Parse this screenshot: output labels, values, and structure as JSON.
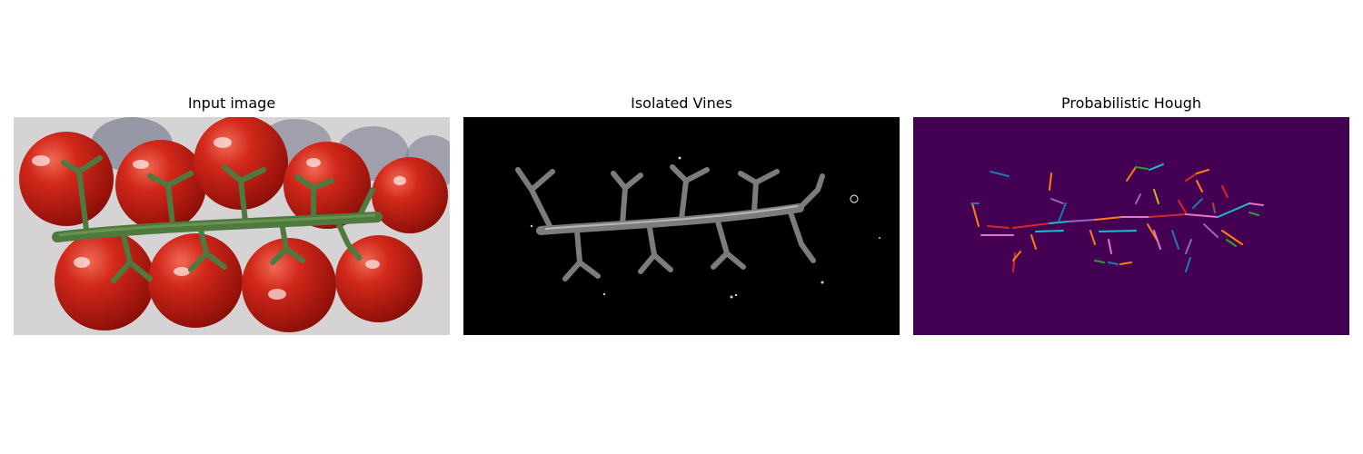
{
  "panels": [
    {
      "title": "Input image"
    },
    {
      "title": "Isolated Vines"
    },
    {
      "title": "Probabilistic Hough"
    }
  ],
  "colors": {
    "hough_background": "#440154",
    "vines_background": "#000000",
    "segment_palette": [
      "#1f77b4",
      "#ff7f0e",
      "#2ca02c",
      "#d62728",
      "#9467bd",
      "#8c564b",
      "#e377c2",
      "#7f7f7f",
      "#bcbd22",
      "#17becf"
    ]
  }
}
